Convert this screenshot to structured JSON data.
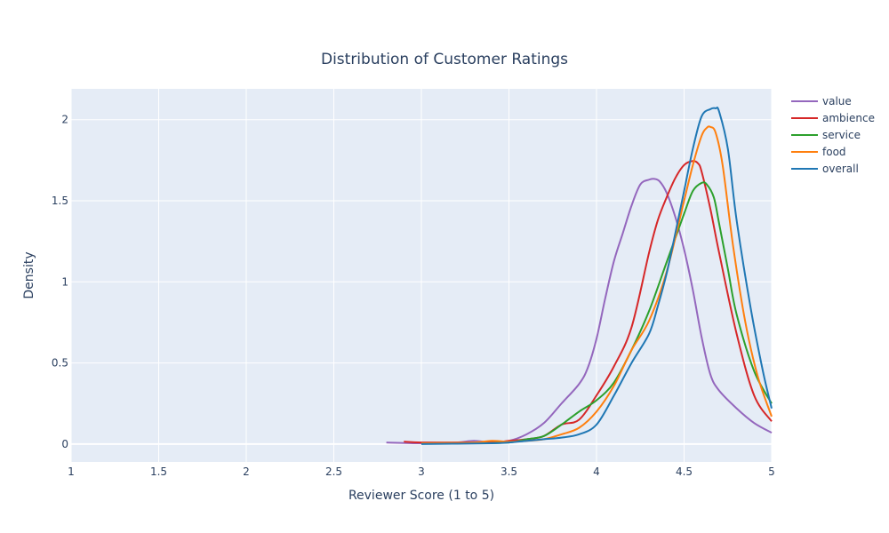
{
  "chart_data": {
    "type": "line",
    "title": "Distribution of Customer Ratings",
    "xlabel": "Reviewer Score (1 to 5)",
    "ylabel": "Density",
    "xlim": [
      1,
      5
    ],
    "ylim": [
      -0.11,
      2.19
    ],
    "xticks": [
      1,
      1.5,
      2,
      2.5,
      3,
      3.5,
      4,
      4.5,
      5
    ],
    "xtick_labels": [
      "1",
      "1.5",
      "2",
      "2.5",
      "3",
      "3.5",
      "4",
      "4.5",
      "5"
    ],
    "yticks": [
      0,
      0.5,
      1,
      1.5,
      2
    ],
    "ytick_labels": [
      "0",
      "0.5",
      "1",
      "1.5",
      "2"
    ],
    "grid": true,
    "legend_position": "top-right",
    "series": [
      {
        "name": "value",
        "color": "#9467bd",
        "x": [
          2.8,
          3.0,
          3.2,
          3.3,
          3.4,
          3.5,
          3.6,
          3.7,
          3.8,
          3.9,
          3.95,
          4.0,
          4.05,
          4.1,
          4.15,
          4.2,
          4.25,
          4.3,
          4.33,
          4.36,
          4.4,
          4.45,
          4.5,
          4.55,
          4.6,
          4.65,
          4.7,
          4.8,
          4.9,
          5.0
        ],
        "y": [
          0.01,
          0.005,
          0.01,
          0.02,
          0.01,
          0.02,
          0.06,
          0.13,
          0.25,
          0.37,
          0.47,
          0.65,
          0.9,
          1.13,
          1.3,
          1.47,
          1.6,
          1.63,
          1.635,
          1.62,
          1.55,
          1.4,
          1.2,
          0.95,
          0.66,
          0.43,
          0.33,
          0.22,
          0.13,
          0.07
        ]
      },
      {
        "name": "ambience",
        "color": "#d62728",
        "x": [
          2.9,
          3.0,
          3.2,
          3.4,
          3.5,
          3.6,
          3.7,
          3.8,
          3.9,
          4.0,
          4.1,
          4.2,
          4.3,
          4.35,
          4.4,
          4.45,
          4.5,
          4.55,
          4.58,
          4.6,
          4.65,
          4.7,
          4.8,
          4.9,
          5.0
        ],
        "y": [
          0.015,
          0.01,
          0.01,
          0.01,
          0.02,
          0.03,
          0.05,
          0.12,
          0.15,
          0.3,
          0.48,
          0.72,
          1.18,
          1.38,
          1.52,
          1.64,
          1.72,
          1.745,
          1.73,
          1.68,
          1.45,
          1.18,
          0.68,
          0.3,
          0.14
        ]
      },
      {
        "name": "service",
        "color": "#2ca02c",
        "x": [
          3.0,
          3.3,
          3.5,
          3.6,
          3.7,
          3.8,
          3.9,
          4.0,
          4.1,
          4.2,
          4.3,
          4.4,
          4.5,
          4.55,
          4.6,
          4.63,
          4.67,
          4.7,
          4.75,
          4.8,
          4.9,
          5.0
        ],
        "y": [
          0.005,
          0.005,
          0.01,
          0.03,
          0.05,
          0.12,
          0.2,
          0.27,
          0.38,
          0.58,
          0.82,
          1.12,
          1.42,
          1.56,
          1.61,
          1.6,
          1.52,
          1.36,
          1.08,
          0.8,
          0.45,
          0.25
        ]
      },
      {
        "name": "food",
        "color": "#ff7f0e",
        "x": [
          3.0,
          3.3,
          3.4,
          3.5,
          3.6,
          3.7,
          3.8,
          3.9,
          4.0,
          4.1,
          4.2,
          4.3,
          4.4,
          4.5,
          4.55,
          4.6,
          4.63,
          4.65,
          4.68,
          4.72,
          4.78,
          4.85,
          4.92,
          5.0
        ],
        "y": [
          0.005,
          0.01,
          0.02,
          0.015,
          0.02,
          0.03,
          0.06,
          0.1,
          0.2,
          0.36,
          0.58,
          0.76,
          1.06,
          1.5,
          1.72,
          1.9,
          1.95,
          1.955,
          1.92,
          1.72,
          1.22,
          0.75,
          0.42,
          0.17
        ]
      },
      {
        "name": "overall",
        "color": "#1f77b4",
        "x": [
          3.0,
          3.4,
          3.5,
          3.6,
          3.7,
          3.8,
          3.9,
          4.0,
          4.1,
          4.2,
          4.3,
          4.35,
          4.4,
          4.45,
          4.5,
          4.55,
          4.6,
          4.65,
          4.68,
          4.7,
          4.75,
          4.8,
          4.88,
          4.95,
          5.0
        ],
        "y": [
          0.0,
          0.005,
          0.01,
          0.02,
          0.03,
          0.04,
          0.06,
          0.12,
          0.3,
          0.5,
          0.68,
          0.85,
          1.05,
          1.3,
          1.56,
          1.82,
          2.02,
          2.065,
          2.07,
          2.05,
          1.82,
          1.38,
          0.84,
          0.45,
          0.22
        ]
      }
    ],
    "legend_order": [
      "value",
      "ambience",
      "service",
      "food",
      "overall"
    ]
  }
}
